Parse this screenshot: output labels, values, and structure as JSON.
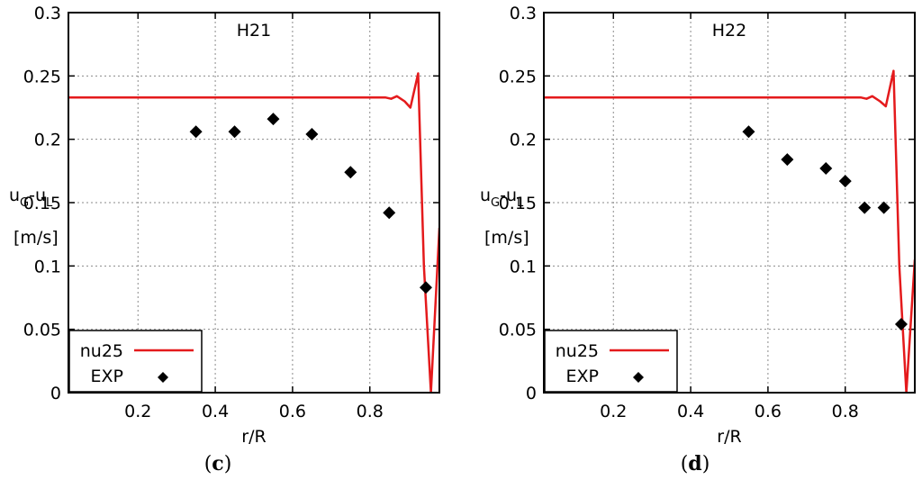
{
  "chart_data": [
    {
      "type": "line",
      "panel_label_open": "(",
      "panel_label": "c",
      "panel_label_close": ")",
      "title": "H21",
      "xlabel": "r/R",
      "ylabel_parts": {
        "u1": "u",
        "g": "G",
        "dash": "-u",
        "l": "L",
        "unit": "[m/s]"
      },
      "xlim": [
        0.02,
        0.98
      ],
      "ylim": [
        0,
        0.3
      ],
      "xticks": [
        0.2,
        0.4,
        0.6,
        0.8
      ],
      "xtick_labels": [
        "0.2",
        "0.4",
        "0.6",
        "0.8"
      ],
      "yticks": [
        0,
        0.05,
        0.1,
        0.15,
        0.2,
        0.25,
        0.3
      ],
      "ytick_labels": [
        "0",
        "0.05",
        "0.1",
        "0.15",
        "0.2",
        "0.25",
        "0.3"
      ],
      "grid": true,
      "legend_position": "bottom-left",
      "series": [
        {
          "name": "nu25",
          "style": "line",
          "color": "#e41a1c",
          "x": [
            0.02,
            0.1,
            0.3,
            0.5,
            0.7,
            0.84,
            0.855,
            0.87,
            0.89,
            0.905,
            0.925,
            0.94,
            0.958,
            0.98
          ],
          "y": [
            0.233,
            0.233,
            0.233,
            0.233,
            0.233,
            0.233,
            0.232,
            0.234,
            0.23,
            0.225,
            0.252,
            0.1,
            0.0,
            0.13
          ]
        },
        {
          "name": "EXP",
          "style": "marker",
          "color": "#000000",
          "x": [
            0.35,
            0.45,
            0.55,
            0.65,
            0.75,
            0.85,
            0.945
          ],
          "y": [
            0.206,
            0.206,
            0.216,
            0.204,
            0.174,
            0.142,
            0.083
          ]
        }
      ]
    },
    {
      "type": "line",
      "panel_label_open": "(",
      "panel_label": "d",
      "panel_label_close": ")",
      "title": "H22",
      "xlabel": "r/R",
      "ylabel_parts": {
        "u1": "u",
        "g": "G",
        "dash": "-u",
        "l": "L",
        "unit": "[m/s]"
      },
      "xlim": [
        0.02,
        0.98
      ],
      "ylim": [
        0,
        0.3
      ],
      "xticks": [
        0.2,
        0.4,
        0.6,
        0.8
      ],
      "xtick_labels": [
        "0.2",
        "0.4",
        "0.6",
        "0.8"
      ],
      "yticks": [
        0,
        0.05,
        0.1,
        0.15,
        0.2,
        0.25,
        0.3
      ],
      "ytick_labels": [
        "0",
        "0.05",
        "0.1",
        "0.15",
        "0.2",
        "0.25",
        "0.3"
      ],
      "grid": true,
      "legend_position": "bottom-left",
      "series": [
        {
          "name": "nu25",
          "style": "line",
          "color": "#e41a1c",
          "x": [
            0.02,
            0.1,
            0.3,
            0.5,
            0.7,
            0.84,
            0.855,
            0.87,
            0.89,
            0.905,
            0.925,
            0.94,
            0.958,
            0.98
          ],
          "y": [
            0.233,
            0.233,
            0.233,
            0.233,
            0.233,
            0.233,
            0.232,
            0.234,
            0.23,
            0.226,
            0.254,
            0.1,
            0.0,
            0.105
          ]
        },
        {
          "name": "EXP",
          "style": "marker",
          "color": "#000000",
          "x": [
            0.55,
            0.65,
            0.75,
            0.8,
            0.85,
            0.9,
            0.945
          ],
          "y": [
            0.206,
            0.184,
            0.177,
            0.167,
            0.146,
            0.146,
            0.054
          ]
        }
      ]
    }
  ]
}
